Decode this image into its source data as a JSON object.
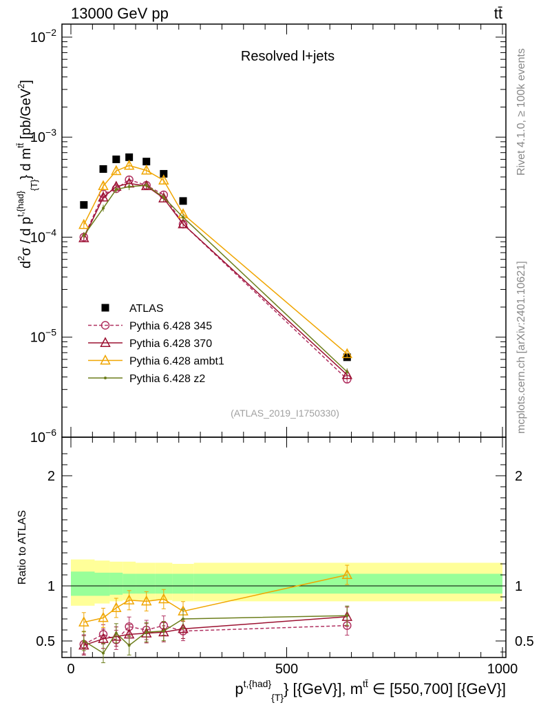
{
  "header": {
    "left": "13000 GeV pp",
    "right": "tt̄",
    "side_top": "Rivet 4.1.0, ≥ 100k events",
    "side_bottom": "mcplots.cern.ch [arXiv:2401.10621]"
  },
  "chart_data": [
    {
      "type": "scatter",
      "panel": "main",
      "title": "Resolved l+jets",
      "watermark": "(ATLAS_2019_I1750330)",
      "yscale": "log",
      "ylim": [
        1e-06,
        0.0135
      ],
      "xlim": [
        -30,
        1000
      ],
      "ylabel_parts": [
        "d",
        "2",
        "σ / d p",
        "t,{had}",
        "{T}",
        "} d m",
        "tt̄",
        " [pb/GeV",
        "2",
        "]"
      ],
      "ytick_labels": [
        {
          "value": 0.01,
          "base": "10",
          "exp": "−2"
        },
        {
          "value": 0.001,
          "base": "10",
          "exp": "−3"
        },
        {
          "value": 0.0001,
          "base": "10",
          "exp": "−4"
        },
        {
          "value": 1e-05,
          "base": "10",
          "exp": "−5"
        },
        {
          "value": 1e-06,
          "base": "10",
          "exp": "−6"
        }
      ],
      "series": [
        {
          "name": "ATLAS",
          "color": "#000000",
          "marker": "square",
          "line": "none",
          "x": [
            30,
            75,
            105,
            135,
            175,
            215,
            260,
            640
          ],
          "y": [
            0.00021,
            0.00048,
            0.0006,
            0.00063,
            0.00057,
            0.00043,
            0.00023,
            6.3e-06
          ]
        },
        {
          "name": "Pythia 6.428 345",
          "color": "#b03060",
          "marker": "circle-open",
          "line": "dashed",
          "x": [
            30,
            75,
            105,
            135,
            175,
            215,
            260,
            640
          ],
          "y": [
            0.0001,
            0.00027,
            0.000305,
            0.000375,
            0.00033,
            0.000265,
            0.000135,
            3.8e-06
          ]
        },
        {
          "name": "Pythia 6.428 370",
          "color": "#9b1030",
          "marker": "triangle-open",
          "line": "solid",
          "x": [
            30,
            75,
            105,
            135,
            175,
            215,
            260,
            640
          ],
          "y": [
            9.8e-05,
            0.00025,
            0.00032,
            0.000345,
            0.000325,
            0.000245,
            0.000135,
            4.2e-06
          ]
        },
        {
          "name": "Pythia 6.428 ambt1",
          "color": "#f0a500",
          "marker": "triangle-open",
          "line": "solid",
          "x": [
            30,
            75,
            105,
            135,
            175,
            215,
            260,
            640
          ],
          "y": [
            0.000133,
            0.000325,
            0.00046,
            0.00052,
            0.000465,
            0.00037,
            0.00017,
            6.8e-06
          ]
        },
        {
          "name": "Pythia 6.428 z2",
          "color": "#6b7d1a",
          "marker": "dot",
          "line": "solid",
          "x": [
            30,
            75,
            105,
            135,
            175,
            215,
            260,
            640
          ],
          "y": [
            0.000104,
            0.000195,
            0.0003,
            0.00032,
            0.00033,
            0.00025,
            0.000158,
            4.5e-06
          ]
        }
      ]
    },
    {
      "type": "line",
      "panel": "ratio",
      "ylabel": "Ratio to ATLAS",
      "ylim": [
        0.35,
        2.35
      ],
      "xlim": [
        -30,
        1000
      ],
      "xlabel_parts": [
        "p",
        "t,{had}",
        "{T}",
        "} [{GeV}], m",
        "tt̄",
        " ∈ [550,700] [{GeV}]"
      ],
      "ytick_labels": [
        {
          "value": 0.5,
          "label": "0.5"
        },
        {
          "value": 1,
          "label": "1"
        },
        {
          "value": 2,
          "label": "2"
        }
      ],
      "xtick_labels": [
        {
          "value": 0,
          "label": "0"
        },
        {
          "value": 500,
          "label": "500"
        },
        {
          "value": 1000,
          "label": "1000"
        }
      ],
      "bands": {
        "edges": [
          0,
          55,
          90,
          120,
          150,
          195,
          235,
          285,
          1000
        ],
        "yellow_low": [
          0.82,
          0.84,
          0.86,
          0.87,
          0.87,
          0.87,
          0.86,
          0.86
        ],
        "yellow_high": [
          1.24,
          1.23,
          1.22,
          1.22,
          1.21,
          1.21,
          1.2,
          1.21
        ],
        "green_low": [
          0.91,
          0.91,
          0.92,
          0.93,
          0.93,
          0.93,
          0.93,
          0.93
        ],
        "green_high": [
          1.13,
          1.12,
          1.12,
          1.11,
          1.11,
          1.11,
          1.11,
          1.11
        ]
      },
      "series": [
        {
          "name": "Pythia 6.428 345",
          "x": [
            30,
            75,
            105,
            135,
            175,
            215,
            260,
            640
          ],
          "y": [
            0.47,
            0.56,
            0.51,
            0.63,
            0.6,
            0.64,
            0.59,
            0.64
          ]
        },
        {
          "name": "Pythia 6.428 370",
          "x": [
            30,
            75,
            105,
            135,
            175,
            215,
            260,
            640
          ],
          "y": [
            0.46,
            0.52,
            0.54,
            0.56,
            0.57,
            0.58,
            0.61,
            0.72
          ]
        },
        {
          "name": "Pythia 6.428 ambt1",
          "x": [
            30,
            75,
            105,
            135,
            175,
            215,
            260,
            640
          ],
          "y": [
            0.67,
            0.71,
            0.8,
            0.87,
            0.86,
            0.88,
            0.77,
            1.1
          ]
        },
        {
          "name": "Pythia 6.428 z2",
          "x": [
            30,
            75,
            105,
            135,
            175,
            215,
            260,
            640
          ],
          "y": [
            0.5,
            0.39,
            0.57,
            0.46,
            0.58,
            0.59,
            0.7,
            0.73
          ]
        }
      ]
    }
  ]
}
